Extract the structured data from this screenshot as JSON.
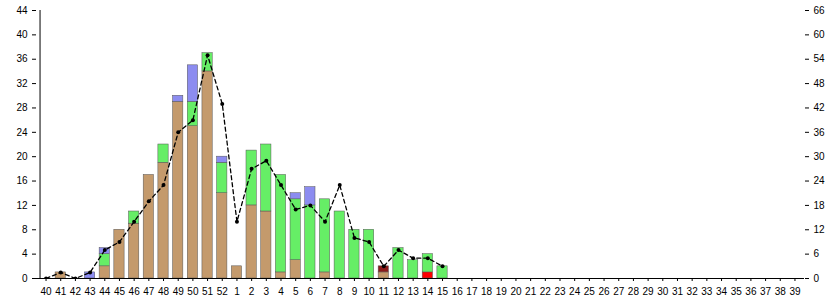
{
  "chart_data": {
    "type": "bar",
    "stacked": true,
    "categories": [
      40,
      41,
      42,
      43,
      44,
      45,
      46,
      47,
      48,
      49,
      50,
      51,
      52,
      1,
      2,
      3,
      4,
      5,
      6,
      7,
      8,
      9,
      10,
      11,
      12,
      13,
      14,
      15,
      16,
      17,
      18,
      19,
      20,
      21,
      22,
      23,
      24,
      25,
      26,
      27,
      28,
      29,
      30,
      31,
      32,
      33,
      34,
      35,
      36,
      37,
      38,
      39
    ],
    "ylim": [
      0,
      44
    ],
    "yticks": [
      0,
      4,
      8,
      12,
      16,
      20,
      24,
      28,
      32,
      36,
      40,
      44
    ],
    "y2lim": [
      0,
      66
    ],
    "y2ticks": [
      0,
      6,
      12,
      18,
      24,
      30,
      36,
      42,
      48,
      54,
      60,
      66
    ],
    "series": [
      {
        "color": "#ff0000",
        "values": [
          0,
          0,
          0,
          0,
          0,
          0,
          0,
          0,
          0,
          0,
          0,
          0,
          0,
          0,
          0,
          0,
          0,
          0,
          0,
          0,
          0,
          0,
          0,
          0,
          0,
          0,
          1,
          0,
          0,
          0,
          0,
          0,
          0,
          0,
          0,
          0,
          0,
          0,
          0,
          0,
          0,
          0,
          0,
          0,
          0,
          0,
          0,
          0,
          0,
          0,
          0,
          0
        ]
      },
      {
        "color": "#c49a6c",
        "values": [
          0,
          1,
          0,
          0,
          2,
          8,
          9,
          17,
          19,
          29,
          25,
          34,
          14,
          2,
          12,
          11,
          1,
          3,
          0,
          1,
          0,
          0,
          0,
          1,
          0,
          0,
          0,
          0,
          0,
          0,
          0,
          0,
          0,
          0,
          0,
          0,
          0,
          0,
          0,
          0,
          0,
          0,
          0,
          0,
          0,
          0,
          0,
          0,
          0,
          0,
          0,
          0
        ]
      },
      {
        "color": "#66ee66",
        "values": [
          0,
          0,
          0,
          0,
          2,
          0,
          2,
          0,
          3,
          0,
          4,
          3,
          5,
          0,
          9,
          11,
          16,
          10,
          12,
          12,
          11,
          8,
          8,
          0,
          5,
          3,
          3,
          2,
          0,
          0,
          0,
          0,
          0,
          0,
          0,
          0,
          0,
          0,
          0,
          0,
          0,
          0,
          0,
          0,
          0,
          0,
          0,
          0,
          0,
          0,
          0,
          0
        ]
      },
      {
        "color": "#8c8cf0",
        "values": [
          0,
          0,
          0,
          1,
          1,
          0,
          0,
          0,
          0,
          1,
          6,
          0,
          1,
          0,
          0,
          0,
          0,
          1,
          3,
          0,
          0,
          0,
          0,
          0,
          0,
          0,
          0,
          0,
          0,
          0,
          0,
          0,
          0,
          0,
          0,
          0,
          0,
          0,
          0,
          0,
          0,
          0,
          0,
          0,
          0,
          0,
          0,
          0,
          0,
          0,
          0,
          0
        ]
      },
      {
        "color": "#8b1a1a",
        "values": [
          0,
          0,
          0,
          0,
          0,
          0,
          0,
          0,
          0,
          0,
          0,
          0,
          0,
          0,
          0,
          0,
          0,
          0,
          0,
          0,
          0,
          0,
          0,
          1,
          0,
          0,
          0,
          0,
          0,
          0,
          0,
          0,
          0,
          0,
          0,
          0,
          0,
          0,
          0,
          0,
          0,
          0,
          0,
          0,
          0,
          0,
          0,
          0,
          0,
          0,
          0,
          0
        ]
      },
      {
        "type": "line",
        "axis": "y2",
        "color": "#000000",
        "line_style": "dashed",
        "marker": "circle",
        "values": [
          0,
          1.5,
          0,
          1.5,
          7,
          9,
          14,
          19,
          23,
          36,
          39,
          55,
          43,
          14,
          27,
          29,
          23,
          17,
          18,
          14,
          23,
          10,
          9,
          3,
          7,
          5,
          5,
          3,
          null,
          null,
          null,
          null,
          null,
          null,
          null,
          null,
          null,
          null,
          null,
          null,
          null,
          null,
          null,
          null,
          null,
          null,
          null,
          null,
          null,
          null,
          null,
          null
        ]
      }
    ]
  }
}
